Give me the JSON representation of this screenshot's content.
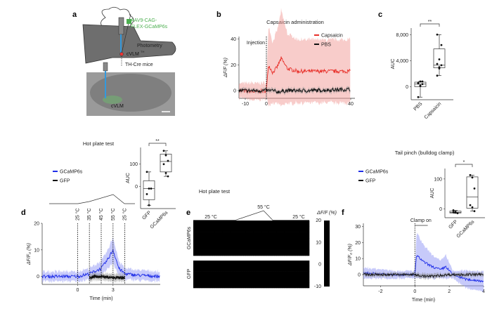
{
  "panels": {
    "a": "a",
    "b": "b",
    "c": "c",
    "d": "d",
    "e": "e",
    "f": "f"
  },
  "a": {
    "virus": "AAV9-CAG-",
    "virus2": "FLEX-GCaMP6s",
    "photometry": "Photometry",
    "region": "cVLM",
    "region_sup": "TH",
    "mice": "TH-Cre mice",
    "histo_label": "cVLM",
    "colors": {
      "virus": "#4caf50",
      "fiber": "#3399dd",
      "brain": "#6e6e6e"
    }
  },
  "chart_data": [
    {
      "id": "b",
      "type": "line",
      "title": "Capsaicin administration",
      "ylabel": "ΔF/F (%)",
      "xlabel": "",
      "xlim": [
        -13,
        42
      ],
      "ylim": [
        -6,
        42
      ],
      "xticks": [
        "-10",
        "0",
        "40"
      ],
      "yticks": [
        "0",
        "20",
        "40"
      ],
      "annotation": "Injection",
      "series": [
        {
          "name": "Capsaicin",
          "color": "#e8302a",
          "x": [
            -13,
            -5,
            0,
            1,
            3,
            5,
            7,
            10,
            15,
            20,
            30,
            40
          ],
          "y": [
            0,
            -1,
            0,
            20,
            14,
            18,
            25,
            17,
            15,
            15,
            15,
            15
          ]
        },
        {
          "name": "PBS",
          "color": "#111111",
          "x": [
            -13,
            0,
            3,
            5,
            10,
            20,
            40
          ],
          "y": [
            0,
            0,
            0,
            -1,
            0,
            0,
            1
          ]
        }
      ]
    },
    {
      "id": "c",
      "type": "box",
      "ylabel": "AUC",
      "yticks": [
        "0",
        "4,000",
        "8,000"
      ],
      "ylim": [
        -2000,
        9000
      ],
      "categories": [
        "PBS",
        "Capsaicin"
      ],
      "significance": "**",
      "groups": [
        {
          "name": "PBS",
          "points": [
            -1600,
            100,
            400,
            600,
            800,
            800,
            500,
            200
          ],
          "q1": 0,
          "median": 400,
          "q3": 700,
          "min": -1600,
          "max": 800
        },
        {
          "name": "Capsaicin",
          "points": [
            1700,
            2800,
            3300,
            3500,
            4200,
            6400,
            8000,
            3000
          ],
          "q1": 2900,
          "median": 3300,
          "q3": 5800,
          "min": 1700,
          "max": 8000
        }
      ]
    },
    {
      "id": "d",
      "type": "line",
      "title": "Hot plate test",
      "ylabel": "ΔF/F₀ (%)",
      "xlabel": "Time (min)",
      "xlim": [
        -3,
        7
      ],
      "ylim": [
        -3,
        20
      ],
      "xticks": [
        "0",
        "3"
      ],
      "yticks": [
        "0",
        "10",
        "20"
      ],
      "temps": [
        "25 °C",
        "35 °C",
        "45 °C",
        "55 °C",
        "25 °C"
      ],
      "temp_times": [
        0,
        1,
        2,
        3,
        4
      ],
      "series": [
        {
          "name": "GCaMP6s",
          "color": "#1f2ee8",
          "x": [
            -3,
            0,
            1,
            2,
            2.5,
            3,
            3.5,
            4,
            5,
            7
          ],
          "y": [
            0,
            0,
            1,
            3,
            6,
            10,
            3,
            1,
            0.5,
            0
          ]
        },
        {
          "name": "GFP",
          "color": "#111111",
          "x": [
            1,
            1.5,
            2,
            3,
            4
          ],
          "y": [
            -0.5,
            0,
            0,
            -0.5,
            -0.5
          ]
        }
      ]
    },
    {
      "id": "d_auc",
      "type": "box",
      "ylabel": "AUC",
      "yticks": [
        "0",
        "100"
      ],
      "categories": [
        "GFP",
        "GCaMP6s"
      ],
      "significance": "**",
      "groups": [
        {
          "name": "GFP",
          "points": [
            65,
            -10,
            -10,
            -35,
            -85
          ],
          "q1": -60,
          "median": -10,
          "q3": 25,
          "min": -85,
          "max": 65
        },
        {
          "name": "GCaMP6s",
          "points": [
            160,
            140,
            115,
            100,
            60,
            45
          ],
          "q1": 65,
          "median": 112,
          "q3": 145,
          "min": 45,
          "max": 160
        }
      ]
    },
    {
      "id": "e",
      "type": "heatmap",
      "title": "Hot plate test",
      "colorbar_label": "ΔF/F (%)",
      "colorbar_ticks": [
        "20",
        "10",
        "0",
        "-10"
      ],
      "clim": [
        -10,
        20
      ],
      "rows": [
        "GCaMP6s",
        "GFP"
      ],
      "temp_labels": [
        "25 °C",
        "55 °C",
        "25 °C"
      ]
    },
    {
      "id": "f",
      "type": "line",
      "title": "Tail pinch (bulldog clamp)",
      "ylabel": "ΔF/F₀ (%)",
      "xlabel": "Time (min)",
      "xlim": [
        -3,
        4
      ],
      "ylim": [
        -7,
        32
      ],
      "xticks": [
        "-2",
        "0",
        "2",
        "4"
      ],
      "yticks": [
        "0",
        "10",
        "20",
        "30"
      ],
      "annotation": "Clamp on",
      "series": [
        {
          "name": "GCaMP6s",
          "color": "#1f2ee8",
          "x": [
            -3,
            -1,
            0,
            0.1,
            0.5,
            1,
            1.5,
            1.8,
            2.2,
            3,
            4
          ],
          "y": [
            1,
            0,
            0,
            12,
            8,
            5,
            3,
            5,
            0,
            -3,
            -4
          ]
        },
        {
          "name": "GFP",
          "color": "#111111",
          "x": [
            -3,
            0,
            0.5,
            1,
            2,
            4
          ],
          "y": [
            0,
            0,
            -1,
            -1,
            0,
            0
          ]
        }
      ]
    },
    {
      "id": "f_auc",
      "type": "box",
      "ylabel": "AUC",
      "yticks": [
        "0",
        "100"
      ],
      "categories": [
        "GFP",
        "GCaMP6s"
      ],
      "significance": "*",
      "groups": [
        {
          "name": "GFP",
          "points": [
            -5,
            -10,
            -15,
            -12,
            -13
          ],
          "q1": -14,
          "median": -12,
          "q3": -8,
          "min": -15,
          "max": -5
        },
        {
          "name": "GCaMP6s",
          "points": [
            113,
            105,
            68,
            12,
            5,
            -8
          ],
          "q1": 2,
          "median": 40,
          "q3": 107,
          "min": -8,
          "max": 113
        }
      ]
    }
  ]
}
